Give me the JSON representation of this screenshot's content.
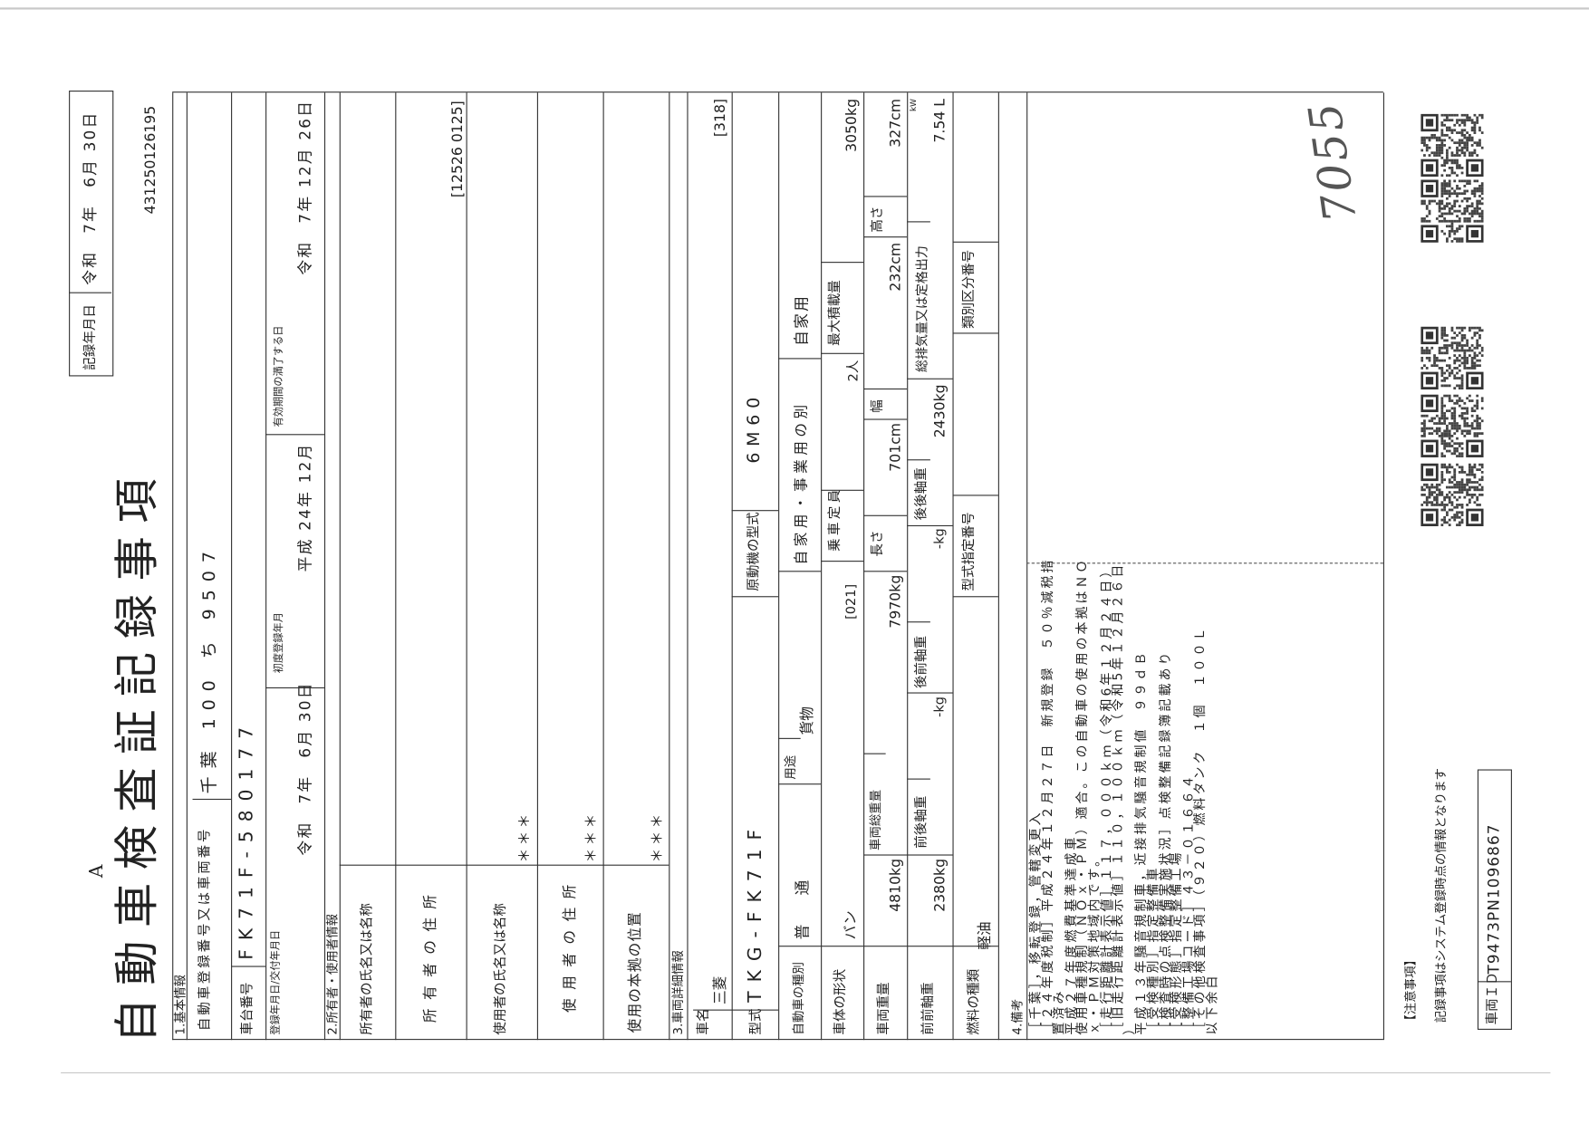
{
  "header": {
    "record_date_label": "記録年月日",
    "record_date_value": "令和　7年　6月 30日",
    "form_letter": "A",
    "title": "自動車検査証記録事項",
    "doc_number": "431250126195"
  },
  "basic": {
    "section": "1.基本情報",
    "reg_label": "自動車登録番号又は車両番号",
    "reg_value": "千葉 100 ち 9507",
    "chassis_label": "車台番号",
    "chassis_value": "FK71F-580177",
    "issue_label": "登録年月日/交付年月日",
    "issue_value": "令和　7年　6月 30日",
    "first_reg_label": "初度登録年月",
    "first_reg_value": "平成 24年 12月",
    "expiry_label": "有効期間の満了する日",
    "expiry_value": "令和　7年 12月 26日"
  },
  "owner": {
    "section": "2.所有者・使用者情報",
    "owner_name_label": "所有者の氏名又は名称",
    "owner_address_label": "所 有 者 の 住 所",
    "owner_code": "[12526 0125]",
    "user_name_label": "使用者の氏名又は名称",
    "user_name_value": "＊＊＊",
    "user_address_label": "使 用 者 の 住 所",
    "user_address_value": "＊＊＊",
    "base_label": "使用の本拠の位置",
    "base_value": "＊＊＊"
  },
  "vehicle": {
    "section": "3.車両詳細情報",
    "name_label": "車名",
    "name_value": "三菱",
    "name_code": "[318]",
    "model_label": "型式",
    "model_value": "TKG-FK71F",
    "engine_label": "原動機の型式",
    "engine_value": "6M60",
    "type_label": "自動車の種別",
    "type_value": "普 通",
    "use_label": "用途",
    "use_value": "貨物",
    "private_label": "自家用・事業用の別",
    "private_value": "自家用",
    "body_label": "車体の形状",
    "body_value": "バン",
    "body_code": "[021]",
    "capacity_label": "乗車定員",
    "capacity_value": "2人",
    "max_load_label": "最大積載量",
    "max_load_value": "3050kg",
    "weight_label": "車両重量",
    "weight_value": "4810kg",
    "gross_label": "車両総重量",
    "gross_value": "7970kg",
    "length_label": "長さ",
    "length_value": "701cm",
    "width_label": "幅",
    "width_value": "232cm",
    "height_label": "高さ",
    "height_value": "327cm",
    "ff_axle_label": "前前軸重",
    "ff_axle_value": "2380kg",
    "fr_axle_label": "前後軸重",
    "fr_axle_value": "-kg",
    "rf_axle_label": "後前軸重",
    "rf_axle_value": "-kg",
    "rr_axle_label": "後後軸重",
    "rr_axle_value": "2430kg",
    "displacement_label": "総排気量又は定格出力",
    "displacement_value": "7.54 L",
    "displacement_unit_alt": "kW",
    "fuel_label": "燃料の種類",
    "fuel_value": "軽油",
    "type_approval_label": "型式指定番号",
    "category_label": "類別区分番号"
  },
  "remarks": {
    "section": "4.備考",
    "lines": [
      "［千葉］，移転登録，管轄変更入",
      "［２４年度税制］平成２４年１２月２７日　新規登録　５０％減税措",
      "置済み",
      "平成２７年度燃費基準達成車",
      "使用車種規制（ＮＯｘ・ＰＭ）適合。この自動車の使用の本拠はＮＯ",
      "ｘ・ＰＭ対策地域内です。",
      "［走行距離計表示値］１１７，０００ｋｍ（令和6年１２月２４日）",
      "［旧走行距離計表示値］１１０，１００ｋｍ（令和5年１２月２６日",
      "）",
      "平成１３年騒音規制車，近接排気騒音規制値　９９ｄＢ",
      "［受検種別］指定整備車",
      "［検査時の点検整備実施状況］点検整備記録簿記載あり",
      "［受検形態］指定整備工場",
      "［整備工場コード］４３－０１６６４",
      "［その他検査事項］（９２０）燃料タンク　１個　１００Ｌ",
      "以下余白"
    ],
    "handwritten_note": "7055"
  },
  "footer": {
    "notice_heading": "【注意事項】",
    "notice_text": "記録事項はシステム登録時点の情報となります",
    "vehicle_id_label": "車両ＩＤ",
    "vehicle_id_value": "T9473PN1096867"
  },
  "qr_codes": 5
}
